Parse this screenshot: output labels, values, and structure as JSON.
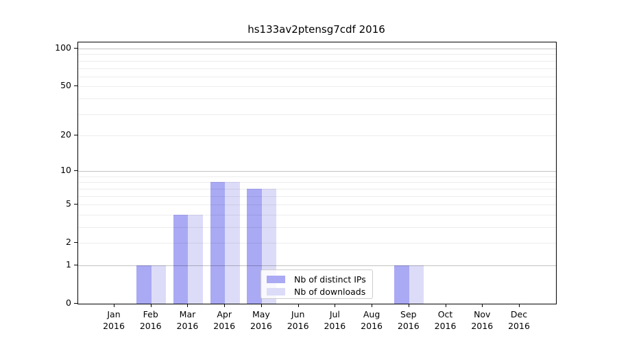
{
  "chart_data": {
    "type": "bar",
    "title": "hs133av2ptensg7cdf 2016",
    "year": "2016",
    "categories": [
      "Jan",
      "Feb",
      "Mar",
      "Apr",
      "May",
      "Jun",
      "Jul",
      "Aug",
      "Sep",
      "Oct",
      "Nov",
      "Dec"
    ],
    "series": [
      {
        "name": "Nb of distinct IPs",
        "color": "#a9a9f4",
        "values": [
          0,
          1,
          4,
          8,
          7,
          0,
          0,
          0,
          1,
          0,
          0,
          0
        ]
      },
      {
        "name": "Nb of downloads",
        "color": "#dcdcf8",
        "values": [
          0,
          1,
          4,
          8,
          7,
          0,
          0,
          0,
          1,
          0,
          0,
          0
        ]
      }
    ],
    "xlabel": "",
    "ylabel": "",
    "yscale": "log1p",
    "ylim": [
      0,
      112
    ],
    "ytick_values": [
      100,
      50,
      20,
      10,
      5,
      2,
      1,
      0
    ],
    "ytick_labels": [
      "100",
      "50",
      "20",
      "10",
      "5",
      "2",
      "1",
      "0"
    ],
    "major_gridlines": [
      1,
      10,
      100
    ],
    "minor_gridlines": [
      2,
      3,
      4,
      5,
      6,
      7,
      8,
      9,
      20,
      30,
      40,
      50,
      60,
      70,
      80,
      90
    ],
    "grid": true,
    "legend_position": "lower center"
  }
}
